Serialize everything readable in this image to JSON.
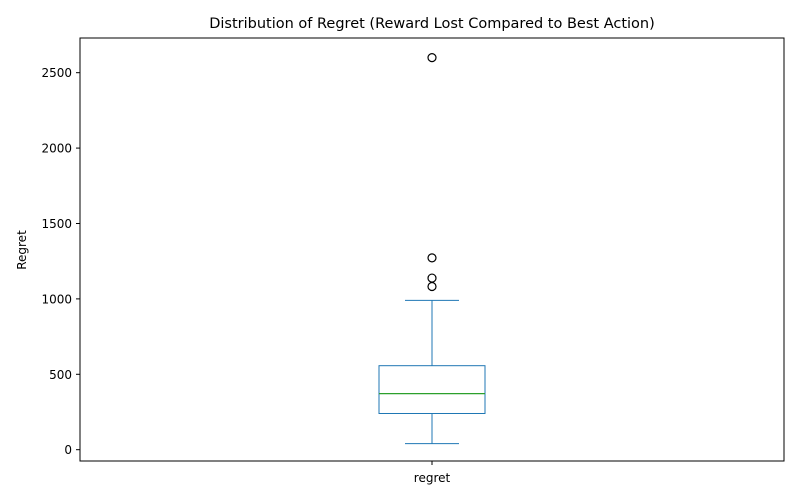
{
  "chart_data": {
    "type": "box",
    "title": "Distribution of Regret (Reward Lost Compared to Best Action)",
    "xlabel": "",
    "ylabel": "Regret",
    "categories": [
      "regret"
    ],
    "ylim": [
      -75,
      2730
    ],
    "yticks": [
      0,
      500,
      1000,
      1500,
      2000,
      2500
    ],
    "grid": false,
    "box": {
      "whisker_low": 40,
      "q1": 240,
      "median": 372,
      "q3": 557,
      "whisker_high": 990
    },
    "outliers": [
      1082,
      1138,
      1272,
      2600
    ],
    "colors": {
      "box": "#1f77b4",
      "median": "#2ca02c",
      "outlier_edge": "#000000",
      "axes": "#000000"
    }
  }
}
